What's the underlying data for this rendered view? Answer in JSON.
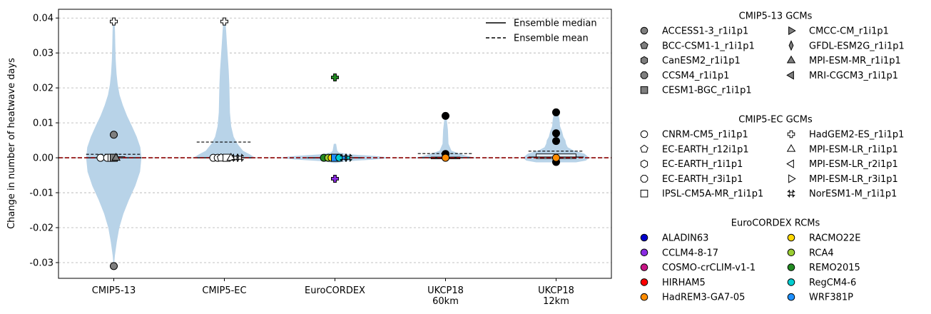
{
  "chart_data": {
    "type": "violin",
    "ylabel": "Change in number of heatwave days",
    "ylim": [
      -0.0345,
      0.0425
    ],
    "yticks": [
      {
        "v": 0.04,
        "label": "0.04"
      },
      {
        "v": 0.03,
        "label": "0.03"
      },
      {
        "v": 0.02,
        "label": "0.02"
      },
      {
        "v": 0.01,
        "label": "0.01"
      },
      {
        "v": 0.0,
        "label": "0.00"
      },
      {
        "v": -0.01,
        "label": "-0.01"
      },
      {
        "v": -0.02,
        "label": "-0.02"
      },
      {
        "v": -0.03,
        "label": "-0.03"
      }
    ],
    "grid": "horizontal dashed",
    "zero_line_color": "#8b0000",
    "violin_color": "#b8d3e8",
    "categories": [
      "CMIP5-13",
      "CMIP5-EC",
      "EuroCORDEX",
      "UKCP18\n60km",
      "UKCP18\n12km"
    ],
    "violins": [
      {
        "median": 0.0,
        "mean": 0.001,
        "half_width": 0.25,
        "profile": [
          [
            -0.031,
            0.005
          ],
          [
            -0.028,
            0.04
          ],
          [
            -0.024,
            0.11
          ],
          [
            -0.02,
            0.2
          ],
          [
            -0.016,
            0.35
          ],
          [
            -0.012,
            0.55
          ],
          [
            -0.008,
            0.78
          ],
          [
            -0.004,
            0.95
          ],
          [
            0.0,
            1.0
          ],
          [
            0.003,
            0.96
          ],
          [
            0.006,
            0.83
          ],
          [
            0.009,
            0.66
          ],
          [
            0.012,
            0.48
          ],
          [
            0.015,
            0.33
          ],
          [
            0.018,
            0.21
          ],
          [
            0.021,
            0.14
          ],
          [
            0.024,
            0.1
          ],
          [
            0.028,
            0.07
          ],
          [
            0.032,
            0.055
          ],
          [
            0.036,
            0.045
          ],
          [
            0.039,
            0.03
          ]
        ]
      },
      {
        "median": 0.0,
        "mean": 0.0045,
        "half_width": 0.28,
        "profile": [
          [
            -0.0002,
            0.96
          ],
          [
            0.0,
            1.0
          ],
          [
            0.001,
            0.82
          ],
          [
            0.002,
            0.6
          ],
          [
            0.004,
            0.42
          ],
          [
            0.006,
            0.3
          ],
          [
            0.009,
            0.22
          ],
          [
            0.013,
            0.18
          ],
          [
            0.017,
            0.17
          ],
          [
            0.021,
            0.16
          ],
          [
            0.025,
            0.14
          ],
          [
            0.029,
            0.11
          ],
          [
            0.033,
            0.08
          ],
          [
            0.036,
            0.06
          ],
          [
            0.039,
            0.035
          ]
        ]
      },
      {
        "median": 0.0,
        "mean": 0.0,
        "half_width": 0.52,
        "profile": [
          [
            -0.0015,
            0.02
          ],
          [
            -0.001,
            0.2
          ],
          [
            -0.0005,
            0.7
          ],
          [
            0.0,
            1.0
          ],
          [
            0.0005,
            0.7
          ],
          [
            0.001,
            0.25
          ],
          [
            0.0015,
            0.07
          ],
          [
            0.002,
            0.04
          ],
          [
            0.003,
            0.03
          ],
          [
            0.004,
            0.02
          ]
        ]
      },
      {
        "median": 0.0,
        "mean": 0.0012,
        "half_width": 0.27,
        "profile": [
          [
            -0.0002,
            0.95
          ],
          [
            0.0,
            1.0
          ],
          [
            0.0008,
            0.6
          ],
          [
            0.002,
            0.2
          ],
          [
            0.004,
            0.1
          ],
          [
            0.006,
            0.09
          ],
          [
            0.008,
            0.08
          ],
          [
            0.0095,
            0.06
          ],
          [
            0.011,
            0.04
          ],
          [
            0.012,
            0.02
          ]
        ]
      },
      {
        "median": 0.0002,
        "mean": 0.0019,
        "half_width": 0.3,
        "profile": [
          [
            -0.0013,
            0.6
          ],
          [
            -0.0008,
            0.9
          ],
          [
            0.0,
            1.0
          ],
          [
            0.0012,
            0.85
          ],
          [
            0.002,
            0.55
          ],
          [
            0.003,
            0.35
          ],
          [
            0.004,
            0.3
          ],
          [
            0.005,
            0.28
          ],
          [
            0.006,
            0.22
          ],
          [
            0.0075,
            0.18
          ],
          [
            0.009,
            0.12
          ],
          [
            0.011,
            0.1
          ],
          [
            0.013,
            0.06
          ]
        ]
      }
    ],
    "boxes": [
      {
        "q1": 0.0,
        "q3": 0.0003,
        "w": 0.1
      },
      {
        "q1": 0.0,
        "q3": 0.0002,
        "w": 0.05
      },
      {
        "q1": -0.0004,
        "q3": 0.0003,
        "w": 0.09
      },
      {
        "q1": -0.0003,
        "q3": 0.0002,
        "w": 0.13
      },
      {
        "q1": -0.0002,
        "q3": 0.0011,
        "w": 0.18
      }
    ],
    "points": [
      {
        "cat": 0,
        "dx": 0.0,
        "y": -0.031,
        "m": "circle",
        "fill": "#7f7f7f"
      },
      {
        "cat": 0,
        "dx": 0.0,
        "y": 0.0066,
        "m": "circle",
        "fill": "#7f7f7f"
      },
      {
        "cat": 0,
        "dx": -0.12,
        "y": 0.0,
        "m": "circle",
        "fill": "#ffffff"
      },
      {
        "cat": 0,
        "dx": -0.06,
        "y": 0.0,
        "m": "circle",
        "fill": "#ffffff"
      },
      {
        "cat": 0,
        "dx": -0.02,
        "y": 0.0,
        "m": "square",
        "fill": "#ffffff"
      },
      {
        "cat": 0,
        "dx": 0.0,
        "y": 0.0,
        "m": "square",
        "fill": "#7f7f7f"
      },
      {
        "cat": 0,
        "dx": 0.02,
        "y": 0.0,
        "m": "triangle",
        "fill": "#7f7f7f"
      },
      {
        "cat": 0,
        "dx": 0.0,
        "y": 0.039,
        "m": "plus",
        "fill": "#ffffff"
      },
      {
        "cat": 1,
        "dx": -0.1,
        "y": 0.0,
        "m": "circle",
        "fill": "#ffffff"
      },
      {
        "cat": 1,
        "dx": -0.06,
        "y": 0.0,
        "m": "circle",
        "fill": "#ffffff"
      },
      {
        "cat": 1,
        "dx": -0.03,
        "y": 0.0,
        "m": "pentagon",
        "fill": "#ffffff"
      },
      {
        "cat": 1,
        "dx": 0.02,
        "y": 0.0,
        "m": "square",
        "fill": "#ffffff"
      },
      {
        "cat": 1,
        "dx": 0.06,
        "y": 0.0,
        "m": "triangle",
        "fill": "#ffffff"
      },
      {
        "cat": 1,
        "dx": 0.1,
        "y": 0.0,
        "m": "x",
        "fill": "#ffffff"
      },
      {
        "cat": 1,
        "dx": 0.14,
        "y": 0.0,
        "m": "x",
        "fill": "#ffffff"
      },
      {
        "cat": 1,
        "dx": 0.0,
        "y": 0.039,
        "m": "plus",
        "fill": "#ffffff"
      },
      {
        "cat": 2,
        "dx": -0.1,
        "y": 0.0,
        "m": "circle",
        "fill": "#228B22"
      },
      {
        "cat": 2,
        "dx": -0.06,
        "y": 0.0,
        "m": "circle",
        "fill": "#9ACD32"
      },
      {
        "cat": 2,
        "dx": -0.03,
        "y": 0.0,
        "m": "circle",
        "fill": "#FFD700"
      },
      {
        "cat": 2,
        "dx": 0.0,
        "y": 0.0,
        "m": "square",
        "fill": "#1E90FF"
      },
      {
        "cat": 2,
        "dx": 0.04,
        "y": 0.0,
        "m": "circle",
        "fill": "#00CED1"
      },
      {
        "cat": 2,
        "dx": 0.08,
        "y": 0.0,
        "m": "x",
        "fill": "#1E90FF"
      },
      {
        "cat": 2,
        "dx": 0.12,
        "y": 0.0,
        "m": "x",
        "fill": "#00CED1"
      },
      {
        "cat": 2,
        "dx": 0.0,
        "y": 0.023,
        "m": "plus",
        "fill": "#228B22"
      },
      {
        "cat": 2,
        "dx": 0.0,
        "y": -0.006,
        "m": "plus",
        "fill": "#8A2BE2"
      },
      {
        "cat": 3,
        "dx": 0.0,
        "y": 0.012,
        "m": "dot",
        "fill": "#000000"
      },
      {
        "cat": 3,
        "dx": 0.0,
        "y": 0.0011,
        "m": "dot",
        "fill": "#000000"
      },
      {
        "cat": 3,
        "dx": 0.0,
        "y": 0.0,
        "m": "circle",
        "fill": "#FF8C00"
      },
      {
        "cat": 4,
        "dx": 0.0,
        "y": 0.013,
        "m": "dot",
        "fill": "#000000"
      },
      {
        "cat": 4,
        "dx": 0.0,
        "y": 0.007,
        "m": "dot",
        "fill": "#000000"
      },
      {
        "cat": 4,
        "dx": 0.0,
        "y": 0.0048,
        "m": "dot",
        "fill": "#000000"
      },
      {
        "cat": 4,
        "dx": 0.0,
        "y": -0.0012,
        "m": "dot",
        "fill": "#000000"
      },
      {
        "cat": 4,
        "dx": 0.0,
        "y": 0.0,
        "m": "circle",
        "fill": "#FF8C00"
      }
    ],
    "inner_legend": [
      {
        "label": "Ensemble median",
        "style": "solid"
      },
      {
        "label": "Ensemble mean",
        "style": "dashed"
      }
    ],
    "legends": [
      {
        "title": "CMIP5-13 GCMs",
        "columns": [
          [
            {
              "label": "ACCESS1-3_r1i1p1",
              "m": "circle",
              "fill": "#7f7f7f"
            },
            {
              "label": "BCC-CSM1-1_r1i1p1",
              "m": "pentagon",
              "fill": "#7f7f7f"
            },
            {
              "label": "CanESM2_r1i1p1",
              "m": "hexagon",
              "fill": "#7f7f7f"
            },
            {
              "label": "CCSM4_r1i1p1",
              "m": "octagon",
              "fill": "#7f7f7f"
            },
            {
              "label": "CESM1-BGC_r1i1p1",
              "m": "square",
              "fill": "#7f7f7f"
            }
          ],
          [
            {
              "label": "CMCC-CM_r1i1p1",
              "m": "tri-right",
              "fill": "#7f7f7f"
            },
            {
              "label": "GFDL-ESM2G_r1i1p1",
              "m": "thin-diamond",
              "fill": "#7f7f7f"
            },
            {
              "label": "MPI-ESM-MR_r1i1p1",
              "m": "triangle",
              "fill": "#7f7f7f"
            },
            {
              "label": "MRI-CGCM3_r1i1p1",
              "m": "tri-left",
              "fill": "#7f7f7f"
            }
          ]
        ]
      },
      {
        "title": "CMIP5-EC GCMs",
        "columns": [
          [
            {
              "label": "CNRM-CM5_r1i1p1",
              "m": "circle",
              "fill": "#ffffff"
            },
            {
              "label": "EC-EARTH_r12i1p1",
              "m": "pentagon",
              "fill": "#ffffff"
            },
            {
              "label": "EC-EARTH_r1i1p1",
              "m": "hexagon",
              "fill": "#ffffff"
            },
            {
              "label": "EC-EARTH_r3i1p1",
              "m": "octagon",
              "fill": "#ffffff"
            },
            {
              "label": "IPSL-CM5A-MR_r1i1p1",
              "m": "square",
              "fill": "#ffffff"
            }
          ],
          [
            {
              "label": "HadGEM2-ES_r1i1p1",
              "m": "plus",
              "fill": "#ffffff"
            },
            {
              "label": "MPI-ESM-LR_r1i1p1",
              "m": "triangle",
              "fill": "#ffffff"
            },
            {
              "label": "MPI-ESM-LR_r2i1p1",
              "m": "tri-left",
              "fill": "#ffffff"
            },
            {
              "label": "MPI-ESM-LR_r3i1p1",
              "m": "tri-right",
              "fill": "#ffffff"
            },
            {
              "label": "NorESM1-M_r1i1p1",
              "m": "x",
              "fill": "#ffffff"
            }
          ]
        ]
      },
      {
        "title": "EuroCORDEX RCMs",
        "columns": [
          [
            {
              "label": "ALADIN63",
              "m": "circle",
              "fill": "#0000CD"
            },
            {
              "label": "CCLM4-8-17",
              "m": "circle",
              "fill": "#8A2BE2"
            },
            {
              "label": "COSMO-crCLIM-v1-1",
              "m": "circle",
              "fill": "#C71585"
            },
            {
              "label": "HIRHAM5",
              "m": "circle",
              "fill": "#FF0000"
            },
            {
              "label": "HadREM3-GA7-05",
              "m": "circle",
              "fill": "#FF8C00"
            }
          ],
          [
            {
              "label": "RACMO22E",
              "m": "circle",
              "fill": "#FFD700"
            },
            {
              "label": "RCA4",
              "m": "circle",
              "fill": "#9ACD32"
            },
            {
              "label": "REMO2015",
              "m": "circle",
              "fill": "#228B22"
            },
            {
              "label": "RegCM4-6",
              "m": "circle",
              "fill": "#00CED1"
            },
            {
              "label": "WRF381P",
              "m": "circle",
              "fill": "#1E90FF"
            }
          ]
        ]
      }
    ]
  }
}
